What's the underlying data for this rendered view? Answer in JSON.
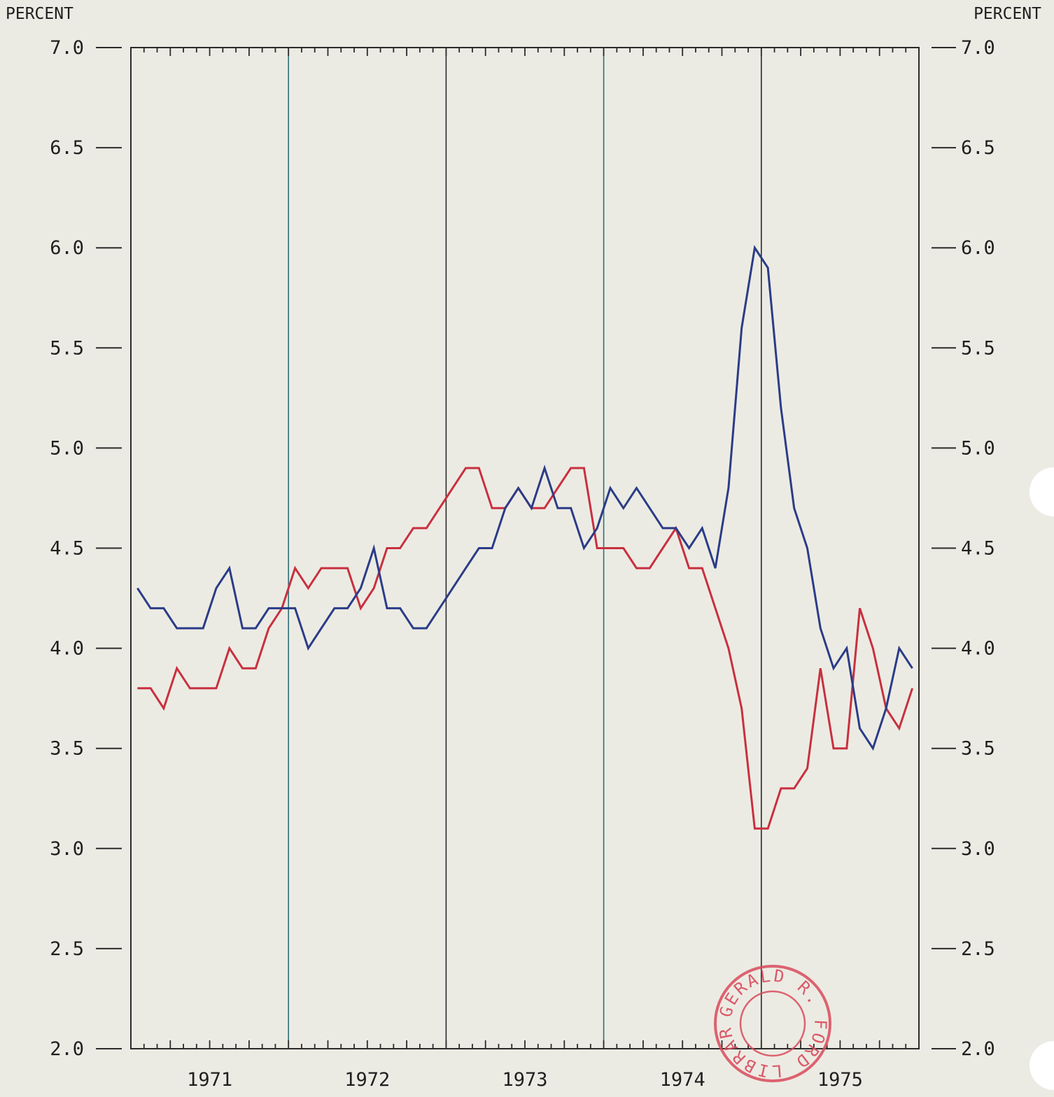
{
  "chart_data": {
    "type": "line",
    "ylabel_left": "PERCENT",
    "ylabel_right": "PERCENT",
    "ylim": [
      2.0,
      7.0
    ],
    "yticks": [
      "2.0",
      "2.5",
      "3.0",
      "3.5",
      "4.0",
      "4.5",
      "5.0",
      "5.5",
      "6.0",
      "6.5",
      "7.0"
    ],
    "years": [
      "1971",
      "1972",
      "1973",
      "1974",
      "1975"
    ],
    "x_start": "1971-01",
    "x_end": "1975-12",
    "grid_vertical_at_year_boundaries": true,
    "series": [
      {
        "color": "#c8303f",
        "x": [
          "1971-01",
          "1971-02",
          "1971-03",
          "1971-04",
          "1971-05",
          "1971-06",
          "1971-07",
          "1971-08",
          "1971-09",
          "1971-10",
          "1971-11",
          "1971-12",
          "1972-01",
          "1972-02",
          "1972-03",
          "1972-04",
          "1972-05",
          "1972-06",
          "1972-07",
          "1972-08",
          "1972-09",
          "1972-10",
          "1972-11",
          "1972-12",
          "1973-01",
          "1973-02",
          "1973-03",
          "1973-04",
          "1973-05",
          "1973-06",
          "1973-07",
          "1973-08",
          "1973-09",
          "1973-10",
          "1973-11",
          "1973-12",
          "1974-01",
          "1974-02",
          "1974-03",
          "1974-04",
          "1974-05",
          "1974-06",
          "1974-07",
          "1974-08",
          "1974-09",
          "1974-10",
          "1974-11",
          "1974-12",
          "1975-01",
          "1975-02",
          "1975-03",
          "1975-04",
          "1975-05",
          "1975-06",
          "1975-07",
          "1975-08",
          "1975-09",
          "1975-10",
          "1975-11",
          "1975-12"
        ],
        "values": [
          3.8,
          3.8,
          3.7,
          3.9,
          3.8,
          3.8,
          3.8,
          4.0,
          3.9,
          3.9,
          4.1,
          4.2,
          4.4,
          4.3,
          4.4,
          4.4,
          4.4,
          4.2,
          4.3,
          4.5,
          4.5,
          4.6,
          4.6,
          4.7,
          4.8,
          4.9,
          4.9,
          4.7,
          4.7,
          4.8,
          4.7,
          4.7,
          4.8,
          4.9,
          4.9,
          4.5,
          4.5,
          4.5,
          4.4,
          4.4,
          4.5,
          4.6,
          4.4,
          4.4,
          4.2,
          4.0,
          3.7,
          3.1,
          3.1,
          3.3,
          3.3,
          3.4,
          3.9,
          3.5,
          3.5,
          4.2,
          4.0,
          3.7,
          3.6,
          3.8
        ]
      },
      {
        "color": "#2a3c88",
        "x": [
          "1971-01",
          "1971-02",
          "1971-03",
          "1971-04",
          "1971-05",
          "1971-06",
          "1971-07",
          "1971-08",
          "1971-09",
          "1971-10",
          "1971-11",
          "1971-12",
          "1972-01",
          "1972-02",
          "1972-03",
          "1972-04",
          "1972-05",
          "1972-06",
          "1972-07",
          "1972-08",
          "1972-09",
          "1972-10",
          "1972-11",
          "1972-12",
          "1973-01",
          "1973-02",
          "1973-03",
          "1973-04",
          "1973-05",
          "1973-06",
          "1973-07",
          "1973-08",
          "1973-09",
          "1973-10",
          "1973-11",
          "1973-12",
          "1974-01",
          "1974-02",
          "1974-03",
          "1974-04",
          "1974-05",
          "1974-06",
          "1974-07",
          "1974-08",
          "1974-09",
          "1974-10",
          "1974-11",
          "1974-12",
          "1975-01",
          "1975-02",
          "1975-03",
          "1975-04",
          "1975-05",
          "1975-06",
          "1975-07",
          "1975-08",
          "1975-09",
          "1975-10",
          "1975-11",
          "1975-12"
        ],
        "values": [
          4.3,
          4.2,
          4.2,
          4.1,
          4.1,
          4.1,
          4.3,
          4.4,
          4.1,
          4.1,
          4.2,
          4.2,
          4.2,
          4.0,
          4.1,
          4.2,
          4.2,
          4.3,
          4.5,
          4.2,
          4.2,
          4.1,
          4.1,
          4.2,
          4.3,
          4.4,
          4.5,
          4.5,
          4.7,
          4.8,
          4.7,
          4.9,
          4.7,
          4.7,
          4.5,
          4.6,
          4.8,
          4.7,
          4.8,
          4.7,
          4.6,
          4.6,
          4.5,
          4.6,
          4.4,
          4.8,
          5.6,
          6.0,
          5.9,
          5.2,
          4.7,
          4.5,
          4.1,
          3.9,
          4.0,
          3.6,
          3.5,
          3.7,
          4.0,
          3.9
        ]
      }
    ]
  },
  "stamp": {
    "text": "GERALD R. FORD LIBRARY",
    "color": "#d94a5c"
  }
}
